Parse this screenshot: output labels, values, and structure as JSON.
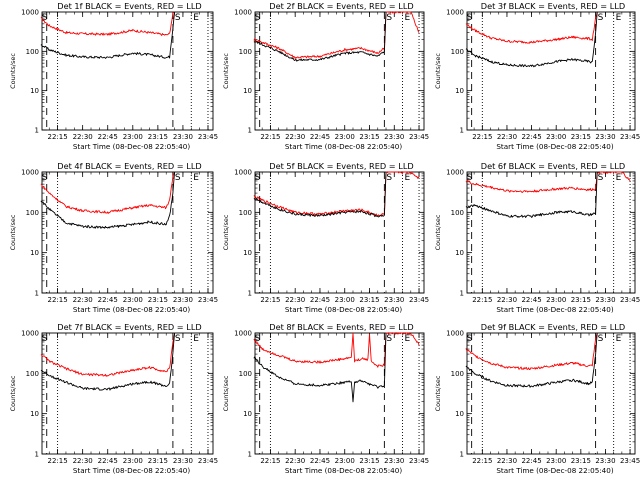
{
  "panels": [
    {
      "title": "Det 1f BLACK = Events, RED = LLD",
      "xlabel": "Start Time (08-Dec-08 22:05:40)",
      "ylabel": "Counts/sec",
      "markers": {
        "left": "S",
        "right_s": "S",
        "right_e": "E"
      },
      "colors": {
        "events": "#000000",
        "lld": "#ff0000"
      },
      "chart_data": {
        "type": "line",
        "x_unit": "time",
        "series": [
          {
            "key": "lld",
            "x": [
              "22:05",
              "22:10",
              "22:20",
              "22:30",
              "22:45",
              "23:00",
              "23:10",
              "23:20",
              "23:22",
              "23:24",
              "23:25"
            ],
            "y": [
              700,
              450,
              300,
              280,
              270,
              340,
              300,
              260,
              280,
              900,
              1000
            ]
          },
          {
            "key": "events",
            "x": [
              "22:05",
              "22:10",
              "22:20",
              "22:30",
              "22:45",
              "23:00",
              "23:10",
              "23:20",
              "23:22",
              "23:24",
              "23:25"
            ],
            "y": [
              150,
              110,
              80,
              72,
              70,
              90,
              82,
              70,
              72,
              400,
              1000
            ]
          }
        ]
      }
    },
    {
      "title": "Det 2f BLACK = Events, RED = LLD",
      "xlabel": "Start Time (08-Dec-08 22:05:40)",
      "ylabel": "Counts/sec",
      "markers": {
        "left": "S",
        "right_s": "S",
        "right_e": "E"
      },
      "colors": {
        "events": "#000000",
        "lld": "#ff0000"
      },
      "chart_data": {
        "type": "line",
        "series": [
          {
            "key": "lld",
            "x": [
              "22:05",
              "22:10",
              "22:20",
              "22:30",
              "22:45",
              "23:00",
              "23:10",
              "23:20",
              "23:24",
              "23:25",
              "23:40",
              "23:45"
            ],
            "y": [
              200,
              170,
              120,
              70,
              75,
              110,
              120,
              90,
              120,
              1000,
              1000,
              300
            ]
          },
          {
            "key": "events",
            "x": [
              "22:05",
              "22:10",
              "22:20",
              "22:30",
              "22:45",
              "23:00",
              "23:10",
              "23:20",
              "23:24",
              "23:25"
            ],
            "y": [
              180,
              150,
              100,
              60,
              62,
              90,
              95,
              75,
              100,
              1000
            ]
          }
        ]
      }
    },
    {
      "title": "Det 3f BLACK = Events, RED = LLD",
      "xlabel": "Start Time (08-Dec-08 22:05:40)",
      "ylabel": "Counts/sec",
      "markers": {
        "left": "S",
        "right_s": "S",
        "right_e": "E"
      },
      "colors": {
        "events": "#000000",
        "lld": "#ff0000"
      },
      "chart_data": {
        "type": "line",
        "series": [
          {
            "key": "lld",
            "x": [
              "22:05",
              "22:10",
              "22:20",
              "22:30",
              "22:45",
              "23:00",
              "23:10",
              "23:20",
              "23:22",
              "23:24",
              "23:25"
            ],
            "y": [
              500,
              350,
              220,
              180,
              170,
              200,
              230,
              210,
              200,
              700,
              1000
            ]
          },
          {
            "key": "events",
            "x": [
              "22:05",
              "22:10",
              "22:20",
              "22:30",
              "22:45",
              "23:00",
              "23:10",
              "23:20",
              "23:22",
              "23:24",
              "23:25"
            ],
            "y": [
              110,
              80,
              55,
              45,
              42,
              55,
              62,
              55,
              52,
              300,
              1000
            ]
          }
        ]
      }
    },
    {
      "title": "Det 4f BLACK = Events, RED = LLD",
      "xlabel": "Start Time (08-Dec-08 22:05:40)",
      "ylabel": "Counts/sec",
      "markers": {
        "left": "S",
        "right_s": "S",
        "right_e": "E"
      },
      "colors": {
        "events": "#000000",
        "lld": "#ff0000"
      },
      "chart_data": {
        "type": "line",
        "series": [
          {
            "key": "lld",
            "x": [
              "22:05",
              "22:10",
              "22:20",
              "22:30",
              "22:45",
              "23:00",
              "23:10",
              "23:20",
              "23:22",
              "23:24",
              "23:25"
            ],
            "y": [
              500,
              300,
              140,
              110,
              100,
              130,
              150,
              130,
              200,
              800,
              1000
            ]
          },
          {
            "key": "events",
            "x": [
              "22:05",
              "22:10",
              "22:20",
              "22:30",
              "22:45",
              "23:00",
              "23:10",
              "23:20",
              "23:22",
              "23:24",
              "23:25"
            ],
            "y": [
              200,
              120,
              55,
              45,
              42,
              50,
              58,
              50,
              80,
              300,
              1000
            ]
          }
        ]
      }
    },
    {
      "title": "Det 5f BLACK = Events, RED = LLD",
      "xlabel": "Start Time (08-Dec-08 22:05:40)",
      "ylabel": "Counts/sec",
      "markers": {
        "left": "S",
        "right_s": "S",
        "right_e": "E"
      },
      "colors": {
        "events": "#000000",
        "lld": "#ff0000"
      },
      "chart_data": {
        "type": "line",
        "series": [
          {
            "key": "lld",
            "x": [
              "22:05",
              "22:10",
              "22:20",
              "22:30",
              "22:45",
              "23:00",
              "23:10",
              "23:20",
              "23:24",
              "23:25",
              "23:40",
              "23:45"
            ],
            "y": [
              250,
              200,
              140,
              100,
              90,
              110,
              115,
              85,
              90,
              1000,
              1000,
              700
            ]
          },
          {
            "key": "events",
            "x": [
              "22:05",
              "22:10",
              "22:20",
              "22:30",
              "22:45",
              "23:00",
              "23:10",
              "23:20",
              "23:24",
              "23:25"
            ],
            "y": [
              230,
              180,
              120,
              90,
              82,
              100,
              105,
              80,
              85,
              1000
            ]
          }
        ]
      }
    },
    {
      "title": "Det 6f BLACK = Events, RED = LLD",
      "xlabel": "Start Time (08-Dec-08 22:05:40)",
      "ylabel": "Counts/sec",
      "markers": {
        "left": "S",
        "right_s": "S",
        "right_e": "E"
      },
      "colors": {
        "events": "#000000",
        "lld": "#ff0000"
      },
      "chart_data": {
        "type": "line",
        "series": [
          {
            "key": "lld",
            "x": [
              "22:05",
              "22:10",
              "22:20",
              "22:30",
              "22:45",
              "23:00",
              "23:10",
              "23:20",
              "23:24",
              "23:25",
              "23:40",
              "23:45"
            ],
            "y": [
              600,
              500,
              420,
              340,
              330,
              380,
              400,
              360,
              380,
              1000,
              1000,
              600
            ]
          },
          {
            "key": "events",
            "x": [
              "22:05",
              "22:10",
              "22:20",
              "22:30",
              "22:45",
              "23:00",
              "23:10",
              "23:20",
              "23:24",
              "23:25"
            ],
            "y": [
              130,
              150,
              110,
              80,
              80,
              100,
              105,
              85,
              95,
              1000
            ]
          }
        ]
      }
    },
    {
      "title": "Det 7f BLACK = Events, RED = LLD",
      "xlabel": "Start Time (08-Dec-08 22:05:40)",
      "ylabel": "Counts/sec",
      "markers": {
        "left": "S",
        "right_s": "S",
        "right_e": "E"
      },
      "colors": {
        "events": "#000000",
        "lld": "#ff0000"
      },
      "chart_data": {
        "type": "line",
        "series": [
          {
            "key": "lld",
            "x": [
              "22:05",
              "22:10",
              "22:20",
              "22:30",
              "22:45",
              "23:00",
              "23:10",
              "23:20",
              "23:22",
              "23:24",
              "23:25"
            ],
            "y": [
              300,
              200,
              130,
              95,
              90,
              120,
              140,
              110,
              130,
              600,
              1000
            ]
          },
          {
            "key": "events",
            "x": [
              "22:05",
              "22:10",
              "22:20",
              "22:30",
              "22:45",
              "23:00",
              "23:10",
              "23:20",
              "23:22",
              "23:24",
              "23:25"
            ],
            "y": [
              120,
              90,
              60,
              42,
              40,
              55,
              62,
              48,
              55,
              300,
              1000
            ]
          }
        ]
      }
    },
    {
      "title": "Det 8f BLACK = Events, RED = LLD",
      "xlabel": "Start Time (08-Dec-08 22:05:40)",
      "ylabel": "Counts/sec",
      "markers": {
        "left": "S",
        "right_s": "S",
        "right_e": "E"
      },
      "colors": {
        "events": "#000000",
        "lld": "#ff0000"
      },
      "chart_data": {
        "type": "line",
        "series": [
          {
            "key": "lld",
            "x": [
              "22:05",
              "22:10",
              "22:20",
              "22:30",
              "22:45",
              "23:00",
              "23:04",
              "23:05",
              "23:06",
              "23:10",
              "23:14",
              "23:15",
              "23:16",
              "23:20",
              "23:24",
              "23:25",
              "23:40",
              "23:45"
            ],
            "y": [
              700,
              400,
              280,
              200,
              190,
              230,
              250,
              1000,
              200,
              230,
              220,
              1000,
              200,
              150,
              160,
              1000,
              1000,
              500
            ]
          },
          {
            "key": "events",
            "x": [
              "22:05",
              "22:10",
              "22:20",
              "22:30",
              "22:45",
              "23:00",
              "23:04",
              "23:05",
              "23:06",
              "23:10",
              "23:20",
              "23:24",
              "23:25"
            ],
            "y": [
              250,
              150,
              80,
              55,
              50,
              60,
              65,
              20,
              60,
              65,
              45,
              50,
              1000
            ]
          }
        ]
      }
    },
    {
      "title": "Det 9f BLACK = Events, RED = LLD",
      "xlabel": "Start Time (08-Dec-08 22:05:40)",
      "ylabel": "Counts/sec",
      "markers": {
        "left": "S",
        "right_s": "S",
        "right_e": "E"
      },
      "colors": {
        "events": "#000000",
        "lld": "#ff0000"
      },
      "chart_data": {
        "type": "line",
        "series": [
          {
            "key": "lld",
            "x": [
              "22:05",
              "22:10",
              "22:20",
              "22:30",
              "22:45",
              "23:00",
              "23:10",
              "23:20",
              "23:22",
              "23:24",
              "23:25"
            ],
            "y": [
              400,
              280,
              180,
              140,
              130,
              160,
              180,
              150,
              160,
              700,
              1000
            ]
          },
          {
            "key": "events",
            "x": [
              "22:05",
              "22:10",
              "22:20",
              "22:30",
              "22:45",
              "23:00",
              "23:10",
              "23:20",
              "23:22",
              "23:24",
              "23:25"
            ],
            "y": [
              150,
              100,
              65,
              50,
              48,
              60,
              68,
              55,
              60,
              300,
              1000
            ]
          }
        ]
      }
    }
  ],
  "axes": {
    "y_scale": "log",
    "ylim": [
      1,
      1000
    ],
    "y_ticks": [
      1,
      10,
      100,
      1000
    ],
    "y_tick_labels": [
      "1",
      "10",
      "100",
      "1000"
    ],
    "xlim": [
      "22:05:40",
      "23:48:00"
    ],
    "x_ticks": [
      "22:15",
      "22:30",
      "22:45",
      "23:00",
      "23:15",
      "23:30",
      "23:45"
    ],
    "x_tick_labels": [
      "22:15",
      "22:30",
      "22:45",
      "23:00",
      "23:15",
      "23:30",
      "23:45"
    ],
    "x_minor_step_minutes": 5
  },
  "lines": {
    "dashed_times": [
      "22:08:30",
      "23:24:00"
    ],
    "dotted_times": [
      "22:15:00",
      "23:35:00",
      "23:45:00"
    ]
  }
}
